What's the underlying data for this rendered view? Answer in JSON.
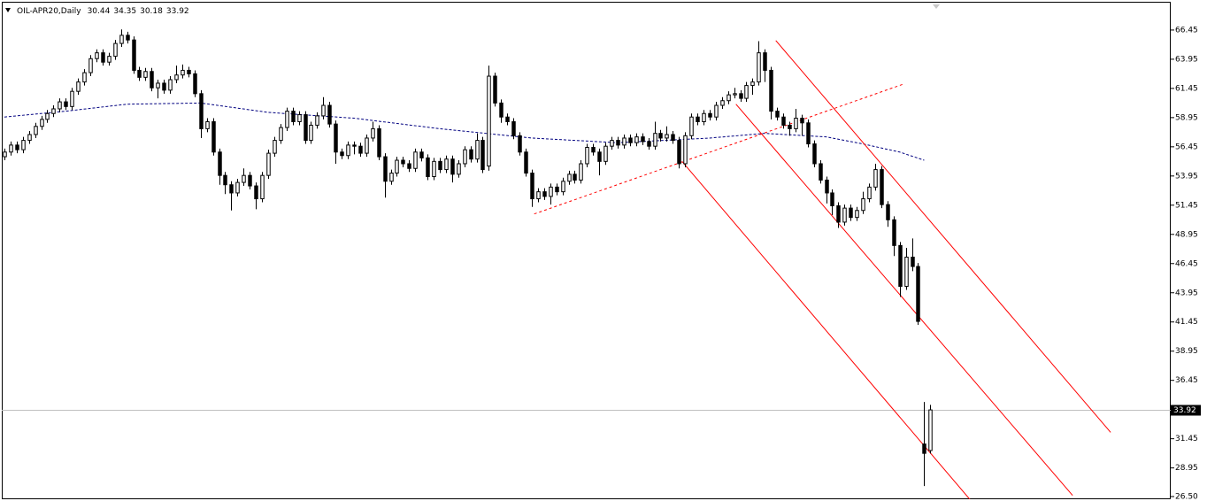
{
  "chart_data": {
    "type": "candlestick",
    "symbol": "OIL-APR20,Daily",
    "up_color": "#ffffff",
    "down_color": "#000000",
    "wick_color": "#000000",
    "ylim": [
      26.27,
      68.87
    ],
    "yticks": [
      66.45,
      63.95,
      61.45,
      58.95,
      56.45,
      53.95,
      51.45,
      48.95,
      46.45,
      43.95,
      41.45,
      38.95,
      36.45,
      31.45,
      28.95,
      {
        "value": 26.5,
        "label": "26.50"
      }
    ],
    "xlim": [
      -0.43,
      190.2
    ],
    "ohlc": [
      [
        55.6,
        56.3,
        55.3,
        56.0
      ],
      [
        56.0,
        56.9,
        55.7,
        56.6
      ],
      [
        56.6,
        56.9,
        55.9,
        56.2
      ],
      [
        56.2,
        57.3,
        55.9,
        57.0
      ],
      [
        57.0,
        57.8,
        56.7,
        57.5
      ],
      [
        57.5,
        58.5,
        57.2,
        58.2
      ],
      [
        58.2,
        59.1,
        57.9,
        58.8
      ],
      [
        58.8,
        59.6,
        58.5,
        59.3
      ],
      [
        59.3,
        60.0,
        59.0,
        59.7
      ],
      [
        59.7,
        60.6,
        59.4,
        60.3
      ],
      [
        60.3,
        60.6,
        59.6,
        59.9
      ],
      [
        59.9,
        61.5,
        59.6,
        61.2
      ],
      [
        61.2,
        62.3,
        60.9,
        62.0
      ],
      [
        62.0,
        63.1,
        61.7,
        62.8
      ],
      [
        62.8,
        64.3,
        62.5,
        64.0
      ],
      [
        64.0,
        64.8,
        63.7,
        64.5
      ],
      [
        64.5,
        64.8,
        63.4,
        63.7
      ],
      [
        63.7,
        64.5,
        63.4,
        64.2
      ],
      [
        64.2,
        65.6,
        63.9,
        65.3
      ],
      [
        65.3,
        66.5,
        65.0,
        66.0
      ],
      [
        66.0,
        66.3,
        65.3,
        65.6
      ],
      [
        65.6,
        65.9,
        62.7,
        63.0
      ],
      [
        63.0,
        63.3,
        62.1,
        62.4
      ],
      [
        62.4,
        63.2,
        62.1,
        62.9
      ],
      [
        62.9,
        63.2,
        61.2,
        61.5
      ],
      [
        61.5,
        62.2,
        60.6,
        61.9
      ],
      [
        61.9,
        62.2,
        61.0,
        61.3
      ],
      [
        61.3,
        62.5,
        61.0,
        62.2
      ],
      [
        62.2,
        63.4,
        61.9,
        62.6
      ],
      [
        62.6,
        63.5,
        62.3,
        63.0
      ],
      [
        63.0,
        63.3,
        62.4,
        62.7
      ],
      [
        62.7,
        63.0,
        60.7,
        61.0
      ],
      [
        61.0,
        61.3,
        57.2,
        58.0
      ],
      [
        58.0,
        58.9,
        57.7,
        58.6
      ],
      [
        58.6,
        58.9,
        55.7,
        56.0
      ],
      [
        56.0,
        56.3,
        53.2,
        54.0
      ],
      [
        54.0,
        54.3,
        52.4,
        53.2
      ],
      [
        53.2,
        53.5,
        51.0,
        52.5
      ],
      [
        52.5,
        53.7,
        52.2,
        53.4
      ],
      [
        53.4,
        54.6,
        53.1,
        54.0
      ],
      [
        54.0,
        54.3,
        52.8,
        53.1
      ],
      [
        53.1,
        53.4,
        51.1,
        52.0
      ],
      [
        52.0,
        54.3,
        51.7,
        54.0
      ],
      [
        54.0,
        56.2,
        53.7,
        55.9
      ],
      [
        55.9,
        57.3,
        55.6,
        57.0
      ],
      [
        57.0,
        58.4,
        56.7,
        58.1
      ],
      [
        58.1,
        59.8,
        57.8,
        59.5
      ],
      [
        59.5,
        59.8,
        58.3,
        58.6
      ],
      [
        58.6,
        59.5,
        58.3,
        59.2
      ],
      [
        59.2,
        59.5,
        56.7,
        57.0
      ],
      [
        57.0,
        58.6,
        56.7,
        58.3
      ],
      [
        58.3,
        59.4,
        58.0,
        59.1
      ],
      [
        59.1,
        60.7,
        58.8,
        60.0
      ],
      [
        60.0,
        60.3,
        58.1,
        58.4
      ],
      [
        58.4,
        58.7,
        55.0,
        56.0
      ],
      [
        56.0,
        56.3,
        55.4,
        55.7
      ],
      [
        55.7,
        56.9,
        55.4,
        56.6
      ],
      [
        56.6,
        56.9,
        55.8,
        56.5
      ],
      [
        56.5,
        56.8,
        55.6,
        55.9
      ],
      [
        55.9,
        57.5,
        55.6,
        57.2
      ],
      [
        57.2,
        58.6,
        56.9,
        58.0
      ],
      [
        58.0,
        58.3,
        55.3,
        55.6
      ],
      [
        55.6,
        55.9,
        52.1,
        53.5
      ],
      [
        53.5,
        54.5,
        53.2,
        54.2
      ],
      [
        54.2,
        55.6,
        53.9,
        55.3
      ],
      [
        55.3,
        55.6,
        54.7,
        55.0
      ],
      [
        55.0,
        55.3,
        54.3,
        54.6
      ],
      [
        54.6,
        56.3,
        54.3,
        56.0
      ],
      [
        56.0,
        56.3,
        55.2,
        55.5
      ],
      [
        55.5,
        55.8,
        53.6,
        53.9
      ],
      [
        53.9,
        55.5,
        53.6,
        55.2
      ],
      [
        55.2,
        55.5,
        54.2,
        54.5
      ],
      [
        54.5,
        55.7,
        54.2,
        55.4
      ],
      [
        55.4,
        55.7,
        53.4,
        54.1
      ],
      [
        54.1,
        55.3,
        53.8,
        55.0
      ],
      [
        55.0,
        56.5,
        54.7,
        56.2
      ],
      [
        56.2,
        56.5,
        55.1,
        55.4
      ],
      [
        55.4,
        57.6,
        55.1,
        57.0
      ],
      [
        57.0,
        57.3,
        54.2,
        54.5
      ],
      [
        54.8,
        63.4,
        54.4,
        62.5
      ],
      [
        62.5,
        62.8,
        59.9,
        60.2
      ],
      [
        60.2,
        60.5,
        58.5,
        59.0
      ],
      [
        59.0,
        59.3,
        58.3,
        58.6
      ],
      [
        58.6,
        58.9,
        57.1,
        57.4
      ],
      [
        57.4,
        57.7,
        55.7,
        56.0
      ],
      [
        56.0,
        56.3,
        53.9,
        54.2
      ],
      [
        54.2,
        54.5,
        51.3,
        52.0
      ],
      [
        52.0,
        52.9,
        51.7,
        52.6
      ],
      [
        52.6,
        52.9,
        51.9,
        52.2
      ],
      [
        52.2,
        53.3,
        51.5,
        53.0
      ],
      [
        53.0,
        53.3,
        52.3,
        52.6
      ],
      [
        52.6,
        53.8,
        52.3,
        53.5
      ],
      [
        53.5,
        54.4,
        53.2,
        54.1
      ],
      [
        54.1,
        54.4,
        53.3,
        53.6
      ],
      [
        53.6,
        55.3,
        53.3,
        55.0
      ],
      [
        55.0,
        56.7,
        54.7,
        56.4
      ],
      [
        56.4,
        56.7,
        55.7,
        56.0
      ],
      [
        56.0,
        56.3,
        54.0,
        55.2
      ],
      [
        55.2,
        56.8,
        54.9,
        56.5
      ],
      [
        56.5,
        57.3,
        56.2,
        57.0
      ],
      [
        57.0,
        57.3,
        56.3,
        56.6
      ],
      [
        56.6,
        57.5,
        56.3,
        57.2
      ],
      [
        57.2,
        57.5,
        56.5,
        56.8
      ],
      [
        56.8,
        57.6,
        56.5,
        57.3
      ],
      [
        57.3,
        57.6,
        56.6,
        56.9
      ],
      [
        56.9,
        57.2,
        56.2,
        56.5
      ],
      [
        56.5,
        58.6,
        56.2,
        57.6
      ],
      [
        57.6,
        57.9,
        56.9,
        57.2
      ],
      [
        57.2,
        58.2,
        56.9,
        57.5
      ],
      [
        57.5,
        57.8,
        56.7,
        57.0
      ],
      [
        57.0,
        57.3,
        54.6,
        55.0
      ],
      [
        55.0,
        57.7,
        54.7,
        57.4
      ],
      [
        57.4,
        59.3,
        57.1,
        59.0
      ],
      [
        59.0,
        59.3,
        58.3,
        58.6
      ],
      [
        58.6,
        59.6,
        58.3,
        59.3
      ],
      [
        59.3,
        59.6,
        58.7,
        59.0
      ],
      [
        59.0,
        60.3,
        58.7,
        60.0
      ],
      [
        60.0,
        60.7,
        59.7,
        60.4
      ],
      [
        60.4,
        61.2,
        60.1,
        60.9
      ],
      [
        60.9,
        61.5,
        60.6,
        61.0
      ],
      [
        61.0,
        61.3,
        60.3,
        60.6
      ],
      [
        60.6,
        62.0,
        60.3,
        61.7
      ],
      [
        61.7,
        62.3,
        60.9,
        62.0
      ],
      [
        62.0,
        65.5,
        61.7,
        64.5
      ],
      [
        64.5,
        64.8,
        62.0,
        63.0
      ],
      [
        63.0,
        63.3,
        58.8,
        59.5
      ],
      [
        59.5,
        59.8,
        58.7,
        59.0
      ],
      [
        59.0,
        59.3,
        58.0,
        58.3
      ],
      [
        58.3,
        58.6,
        57.4,
        58.0
      ],
      [
        58.0,
        59.7,
        57.7,
        58.9
      ],
      [
        58.9,
        59.2,
        57.4,
        58.5
      ],
      [
        58.5,
        58.8,
        56.4,
        56.7
      ],
      [
        56.7,
        57.0,
        54.7,
        55.0
      ],
      [
        55.0,
        55.3,
        53.3,
        53.6
      ],
      [
        53.6,
        53.9,
        51.6,
        52.5
      ],
      [
        52.5,
        52.8,
        50.6,
        51.4
      ],
      [
        51.4,
        51.7,
        49.5,
        50.0
      ],
      [
        50.0,
        51.5,
        49.7,
        51.2
      ],
      [
        51.2,
        51.5,
        50.1,
        50.4
      ],
      [
        50.4,
        51.3,
        50.1,
        51.0
      ],
      [
        51.0,
        52.6,
        50.7,
        52.0
      ],
      [
        52.0,
        53.3,
        51.7,
        53.0
      ],
      [
        53.0,
        55.0,
        52.7,
        54.5
      ],
      [
        54.5,
        54.8,
        51.2,
        51.5
      ],
      [
        51.5,
        51.8,
        49.6,
        50.2
      ],
      [
        50.2,
        50.5,
        47.1,
        48.0
      ],
      [
        48.0,
        48.3,
        43.6,
        44.5
      ],
      [
        44.5,
        47.8,
        44.2,
        47.0
      ],
      [
        47.0,
        48.6,
        45.8,
        46.2
      ],
      [
        46.2,
        46.5,
        41.2,
        41.5
      ],
      [
        31.0,
        34.6,
        27.4,
        30.2
      ],
      [
        30.44,
        34.35,
        30.18,
        33.92
      ]
    ],
    "ma": {
      "color": "#000080",
      "x": [
        0,
        10,
        20,
        32,
        43,
        57,
        71,
        86,
        100,
        115,
        124,
        134,
        140,
        146,
        150
      ],
      "values": [
        59.0,
        59.5,
        60.1,
        60.2,
        59.4,
        58.9,
        58.0,
        57.2,
        56.8,
        57.2,
        57.6,
        57.3,
        56.7,
        56.0,
        55.3
      ]
    },
    "trendlines": [
      {
        "color": "#ff0000",
        "dashed": true,
        "x": [
          86.4,
          146.5
        ],
        "y": [
          50.7,
          61.8
        ]
      },
      {
        "color": "#ff0000",
        "dashed": false,
        "x": [
          125.8,
          180.4
        ],
        "y": [
          65.55,
          32.0
        ]
      },
      {
        "color": "#ff0000",
        "dashed": false,
        "x": [
          119.3,
          174.2
        ],
        "y": [
          60.1,
          26.6
        ]
      },
      {
        "color": "#ff0000",
        "dashed": false,
        "x": [
          110.5,
          157.7
        ],
        "y": [
          55.2,
          26.1
        ]
      }
    ],
    "last_price_line_color": "#c0c0c0"
  }
}
